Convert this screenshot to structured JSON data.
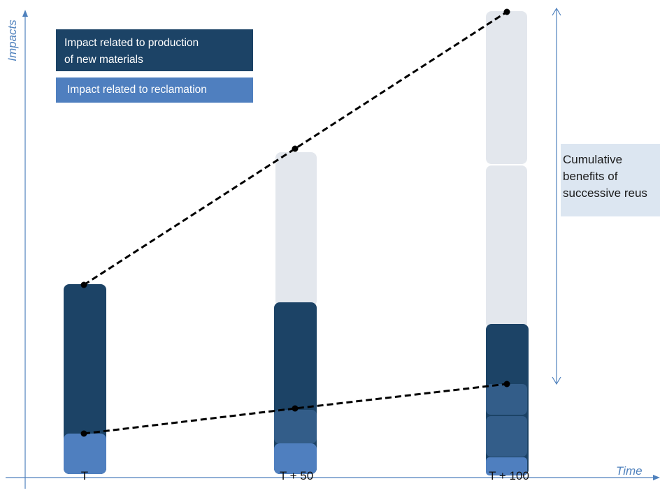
{
  "labels": {
    "y_axis": "Impacts",
    "x_axis": "Time",
    "ticks": [
      "T",
      "T + 50",
      "T + 100"
    ],
    "legend_production": "Impact related to production\nof new materials",
    "legend_reclamation": "Impact related to reclamation",
    "benefit_note": "Cumulative\nbenefits of\nsuccessive reus"
  },
  "colors": {
    "production": "#1c4366",
    "reclamation": "#4f7fbf",
    "reclamation_past": "#335d89",
    "avoided": "#e3e7ed",
    "benefit_box": "#dce6f1",
    "axis": "#4f81bd",
    "line": "#000000"
  },
  "columns": [
    {
      "tick": "T",
      "segments": [
        "reclamation",
        "production"
      ],
      "avoided_blocks": 0
    },
    {
      "tick": "T + 50",
      "segments": [
        "reclamation",
        "reclamation_past",
        "production"
      ],
      "avoided_blocks": 1
    },
    {
      "tick": "T + 100",
      "segments": [
        "reclamation",
        "reclamation_past",
        "reclamation_past",
        "production"
      ],
      "avoided_blocks": 2
    }
  ]
}
